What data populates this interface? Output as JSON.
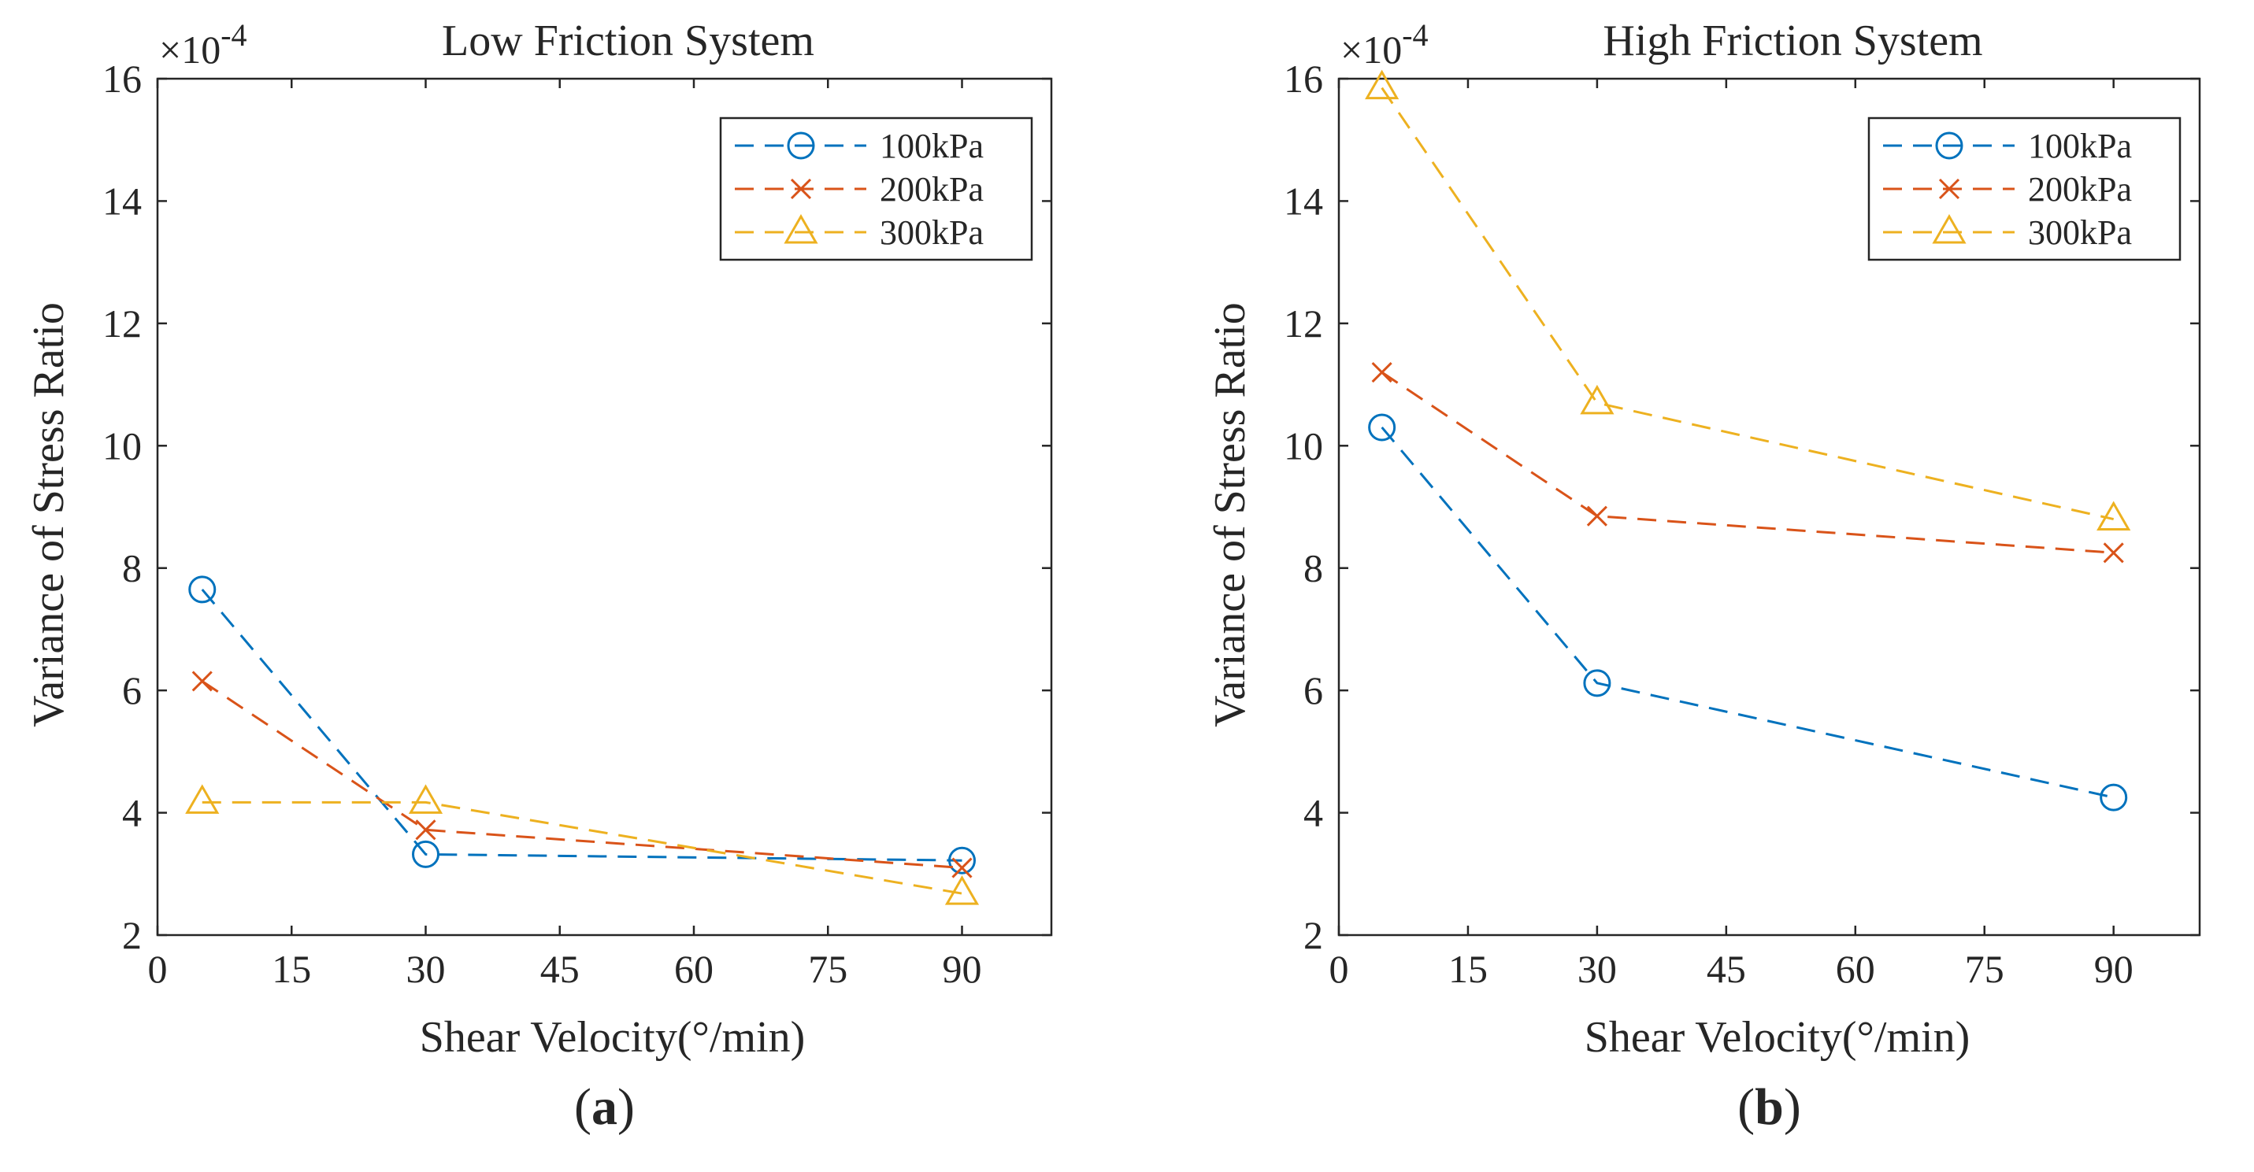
{
  "chart_data": [
    {
      "type": "line",
      "panel_label": "a",
      "title": "Low Friction System",
      "xlabel": "Shear Velocity(°/min)",
      "ylabel": "Variance of Stress Ratio",
      "y_multiplier": "×10",
      "y_exponent": "-4",
      "xlim": [
        0,
        100
      ],
      "ylim": [
        2,
        16
      ],
      "xticks": [
        0,
        15,
        30,
        45,
        60,
        75,
        90
      ],
      "yticks": [
        2,
        4,
        6,
        8,
        10,
        12,
        14,
        16
      ],
      "legend_position": "top-right",
      "x": [
        5,
        30,
        90
      ],
      "series": [
        {
          "name": "100kPa",
          "values": [
            7.65,
            3.32,
            3.22
          ],
          "color": "#0072BD",
          "marker": "circle"
        },
        {
          "name": "200kPa",
          "values": [
            6.15,
            3.72,
            3.1
          ],
          "color": "#D95319",
          "marker": "x"
        },
        {
          "name": "300kPa",
          "values": [
            4.17,
            4.17,
            2.68
          ],
          "color": "#EDB120",
          "marker": "triangle"
        }
      ]
    },
    {
      "type": "line",
      "panel_label": "b",
      "title": "High Friction System",
      "xlabel": "Shear Velocity(°/min)",
      "ylabel": "Variance of Stress Ratio",
      "y_multiplier": "×10",
      "y_exponent": "-4",
      "xlim": [
        0,
        100
      ],
      "ylim": [
        2,
        16
      ],
      "xticks": [
        0,
        15,
        30,
        45,
        60,
        75,
        90
      ],
      "yticks": [
        2,
        4,
        6,
        8,
        10,
        12,
        14,
        16
      ],
      "legend_position": "top-right",
      "x": [
        5,
        30,
        90
      ],
      "series": [
        {
          "name": "100kPa",
          "values": [
            10.3,
            6.12,
            4.25
          ],
          "color": "#0072BD",
          "marker": "circle"
        },
        {
          "name": "200kPa",
          "values": [
            11.2,
            8.85,
            8.25
          ],
          "color": "#D95319",
          "marker": "x"
        },
        {
          "name": "300kPa",
          "values": [
            15.85,
            10.7,
            8.8
          ],
          "color": "#EDB120",
          "marker": "triangle"
        }
      ]
    }
  ]
}
